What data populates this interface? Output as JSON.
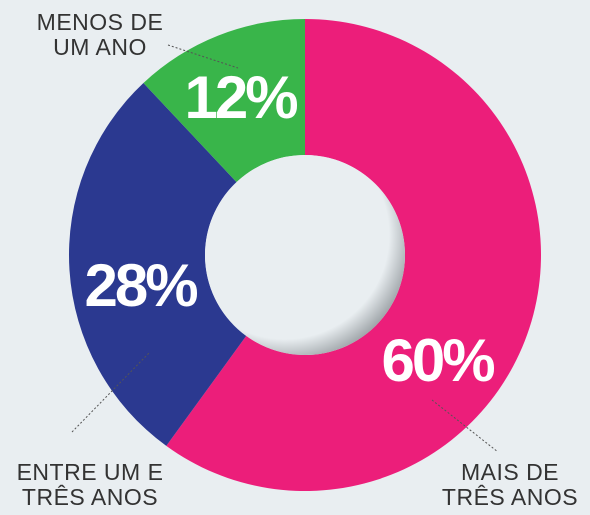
{
  "chart_data": {
    "type": "donut",
    "categories": [
      "MAIS DE\nTRÊS ANOS",
      "ENTRE UM E\nTRÊS ANOS",
      "MENOS DE\nUM ANO"
    ],
    "values": [
      60,
      28,
      12
    ],
    "value_labels": [
      "60%",
      "28%",
      "12%"
    ],
    "colors": [
      "#ec1e7a",
      "#2b3990",
      "#39b54a"
    ]
  }
}
